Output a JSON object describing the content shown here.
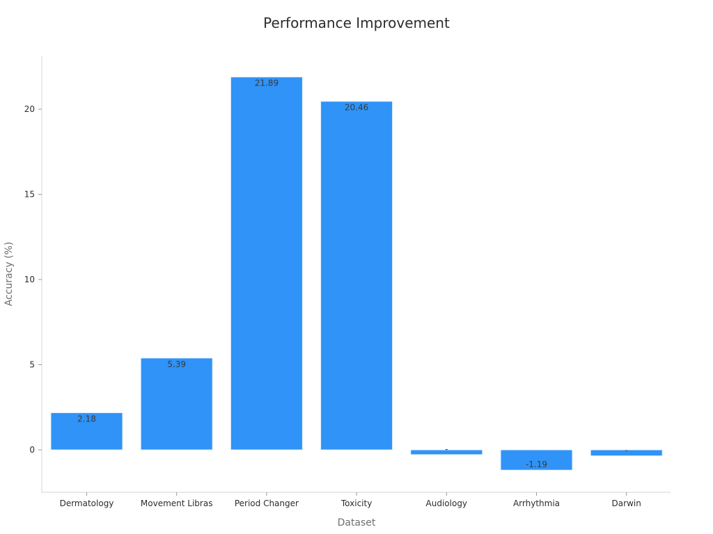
{
  "chart_data": {
    "type": "bar",
    "title": "Performance Improvement",
    "xlabel": "Dataset",
    "ylabel": "Accuracy (%)",
    "categories": [
      "Dermatology",
      "Movement Libras",
      "Period Changer",
      "Toxicity",
      "Audiology",
      "Arrhythmia",
      "Darwin"
    ],
    "values": [
      2.18,
      5.39,
      21.89,
      20.46,
      -0.28,
      -1.19,
      -0.35
    ],
    "data_labels": [
      "2.18",
      "5.39",
      "21.89",
      "20.46",
      "-",
      "-1.19",
      "-"
    ],
    "y_ticks": [
      0,
      5,
      10,
      15,
      20
    ],
    "ylim": [
      -2.5,
      23.3
    ],
    "grid": false,
    "bar_color": "#2f93f8"
  }
}
